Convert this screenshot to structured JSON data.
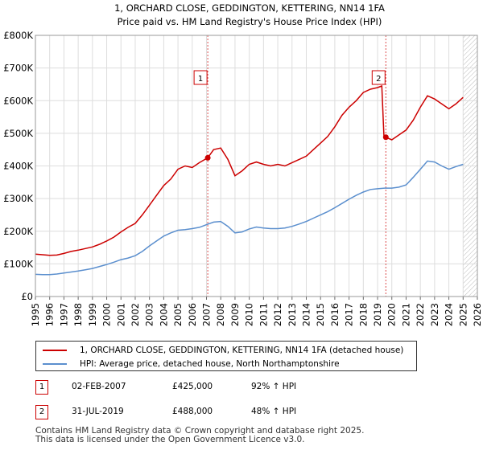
{
  "chart_data": {
    "type": "line",
    "title": "1, ORCHARD CLOSE, GEDDINGTON, KETTERING, NN14 1FA",
    "subtitle": "Price paid vs. HM Land Registry's House Price Index (HPI)",
    "xlim": [
      1995,
      2026
    ],
    "ylim": [
      0,
      800000
    ],
    "x_ticks": [
      "1995",
      "1996",
      "1997",
      "1998",
      "1999",
      "2000",
      "2001",
      "2002",
      "2003",
      "2004",
      "2005",
      "2006",
      "2007",
      "2008",
      "2009",
      "2010",
      "2011",
      "2012",
      "2013",
      "2014",
      "2015",
      "2016",
      "2017",
      "2018",
      "2019",
      "2020",
      "2021",
      "2022",
      "2023",
      "2024",
      "2025",
      "2026"
    ],
    "y_ticks": [
      {
        "value": 0,
        "label": "£0"
      },
      {
        "value": 100000,
        "label": "£100K"
      },
      {
        "value": 200000,
        "label": "£200K"
      },
      {
        "value": 300000,
        "label": "£300K"
      },
      {
        "value": 400000,
        "label": "£400K"
      },
      {
        "value": 500000,
        "label": "£500K"
      },
      {
        "value": 600000,
        "label": "£600K"
      },
      {
        "value": 700000,
        "label": "£700K"
      },
      {
        "value": 800000,
        "label": "£800K"
      }
    ],
    "series": [
      {
        "name": "1, ORCHARD CLOSE, GEDDINGTON, KETTERING, NN14 1FA (detached house)",
        "color": "#cc0000",
        "points": [
          [
            1995.0,
            130000
          ],
          [
            1995.5,
            128000
          ],
          [
            1996.0,
            126000
          ],
          [
            1996.5,
            127000
          ],
          [
            1997.0,
            132000
          ],
          [
            1997.5,
            138000
          ],
          [
            1998.0,
            142000
          ],
          [
            1998.5,
            147000
          ],
          [
            1999.0,
            152000
          ],
          [
            1999.5,
            160000
          ],
          [
            2000.0,
            170000
          ],
          [
            2000.5,
            182000
          ],
          [
            2001.0,
            198000
          ],
          [
            2001.5,
            212000
          ],
          [
            2002.0,
            224000
          ],
          [
            2002.5,
            250000
          ],
          [
            2003.0,
            280000
          ],
          [
            2003.5,
            310000
          ],
          [
            2004.0,
            340000
          ],
          [
            2004.5,
            360000
          ],
          [
            2005.0,
            390000
          ],
          [
            2005.5,
            400000
          ],
          [
            2006.0,
            395000
          ],
          [
            2006.5,
            410000
          ],
          [
            2007.09,
            425000
          ],
          [
            2007.5,
            450000
          ],
          [
            2008.0,
            455000
          ],
          [
            2008.5,
            420000
          ],
          [
            2009.0,
            370000
          ],
          [
            2009.5,
            385000
          ],
          [
            2010.0,
            405000
          ],
          [
            2010.5,
            412000
          ],
          [
            2011.0,
            405000
          ],
          [
            2011.5,
            400000
          ],
          [
            2012.0,
            405000
          ],
          [
            2012.5,
            400000
          ],
          [
            2013.0,
            410000
          ],
          [
            2013.5,
            420000
          ],
          [
            2014.0,
            430000
          ],
          [
            2014.5,
            450000
          ],
          [
            2015.0,
            470000
          ],
          [
            2015.5,
            490000
          ],
          [
            2016.0,
            520000
          ],
          [
            2016.5,
            555000
          ],
          [
            2017.0,
            580000
          ],
          [
            2017.5,
            600000
          ],
          [
            2018.0,
            625000
          ],
          [
            2018.5,
            635000
          ],
          [
            2019.0,
            640000
          ],
          [
            2019.3,
            645000
          ],
          [
            2019.45,
            488000
          ],
          [
            2019.58,
            488000
          ],
          [
            2020.0,
            480000
          ],
          [
            2020.5,
            495000
          ],
          [
            2021.0,
            510000
          ],
          [
            2021.5,
            540000
          ],
          [
            2022.0,
            580000
          ],
          [
            2022.5,
            615000
          ],
          [
            2023.0,
            605000
          ],
          [
            2023.5,
            590000
          ],
          [
            2024.0,
            575000
          ],
          [
            2024.5,
            590000
          ],
          [
            2025.0,
            610000
          ]
        ]
      },
      {
        "name": "HPI: Average price, detached house, North Northamptonshire",
        "color": "#5b8fce",
        "points": [
          [
            1995.0,
            68000
          ],
          [
            1995.5,
            67000
          ],
          [
            1996.0,
            67000
          ],
          [
            1996.5,
            69000
          ],
          [
            1997.0,
            72000
          ],
          [
            1997.5,
            75000
          ],
          [
            1998.0,
            78000
          ],
          [
            1998.5,
            82000
          ],
          [
            1999.0,
            86000
          ],
          [
            1999.5,
            92000
          ],
          [
            2000.0,
            98000
          ],
          [
            2000.5,
            105000
          ],
          [
            2001.0,
            113000
          ],
          [
            2001.5,
            118000
          ],
          [
            2002.0,
            125000
          ],
          [
            2002.5,
            138000
          ],
          [
            2003.0,
            155000
          ],
          [
            2003.5,
            170000
          ],
          [
            2004.0,
            185000
          ],
          [
            2004.5,
            195000
          ],
          [
            2005.0,
            203000
          ],
          [
            2005.5,
            205000
          ],
          [
            2006.0,
            208000
          ],
          [
            2006.5,
            212000
          ],
          [
            2007.0,
            220000
          ],
          [
            2007.5,
            228000
          ],
          [
            2008.0,
            230000
          ],
          [
            2008.5,
            215000
          ],
          [
            2009.0,
            195000
          ],
          [
            2009.5,
            198000
          ],
          [
            2010.0,
            207000
          ],
          [
            2010.5,
            213000
          ],
          [
            2011.0,
            210000
          ],
          [
            2011.5,
            208000
          ],
          [
            2012.0,
            208000
          ],
          [
            2012.5,
            210000
          ],
          [
            2013.0,
            215000
          ],
          [
            2013.5,
            222000
          ],
          [
            2014.0,
            230000
          ],
          [
            2014.5,
            240000
          ],
          [
            2015.0,
            250000
          ],
          [
            2015.5,
            260000
          ],
          [
            2016.0,
            272000
          ],
          [
            2016.5,
            285000
          ],
          [
            2017.0,
            298000
          ],
          [
            2017.5,
            310000
          ],
          [
            2018.0,
            320000
          ],
          [
            2018.5,
            328000
          ],
          [
            2019.0,
            330000
          ],
          [
            2019.5,
            332000
          ],
          [
            2020.0,
            332000
          ],
          [
            2020.5,
            335000
          ],
          [
            2021.0,
            342000
          ],
          [
            2021.5,
            365000
          ],
          [
            2022.0,
            390000
          ],
          [
            2022.5,
            415000
          ],
          [
            2023.0,
            412000
          ],
          [
            2023.5,
            400000
          ],
          [
            2024.0,
            390000
          ],
          [
            2024.5,
            398000
          ],
          [
            2025.0,
            405000
          ]
        ]
      }
    ],
    "sales": [
      {
        "id": "1",
        "date": "02-FEB-2007",
        "x": 2007.09,
        "price": 425000,
        "price_label": "£425,000",
        "hpi_label": "92% ↑ HPI"
      },
      {
        "id": "2",
        "date": "31-JUL-2019",
        "x": 2019.58,
        "price": 488000,
        "price_label": "£488,000",
        "hpi_label": "48% ↑ HPI"
      }
    ],
    "forecast_start": 2025.0
  },
  "legend": {
    "property_label": "1, ORCHARD CLOSE, GEDDINGTON, KETTERING, NN14 1FA (detached house)",
    "hpi_label": "HPI: Average price, detached house, North Northamptonshire",
    "property_color": "#cc0000",
    "hpi_color": "#5b8fce"
  },
  "footer": {
    "line1": "Contains HM Land Registry data © Crown copyright and database right 2025.",
    "line2": "This data is licensed under the Open Government Licence v3.0."
  }
}
